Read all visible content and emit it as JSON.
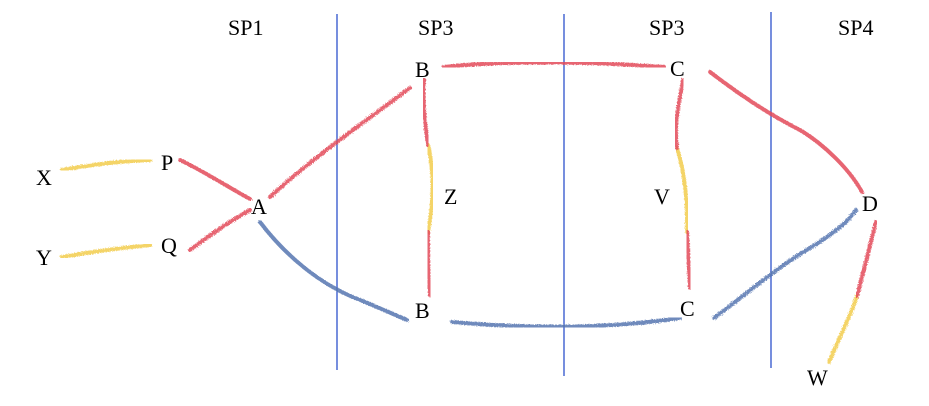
{
  "colors": {
    "red": "#e34b5a",
    "yellow": "#f2cc4c",
    "blue": "#5576b0",
    "divider": "#3d5fcf"
  },
  "columns": {
    "col1": "SP1",
    "col2": "SP3",
    "col3": "SP3",
    "col4": "SP4"
  },
  "nodes": {
    "X": "X",
    "Y": "Y",
    "P": "P",
    "Q": "Q",
    "A": "A",
    "B_top": "B",
    "B_bottom": "B",
    "Z": "Z",
    "C_top": "C",
    "C_bottom": "C",
    "V": "V",
    "D": "D",
    "W": "W"
  }
}
